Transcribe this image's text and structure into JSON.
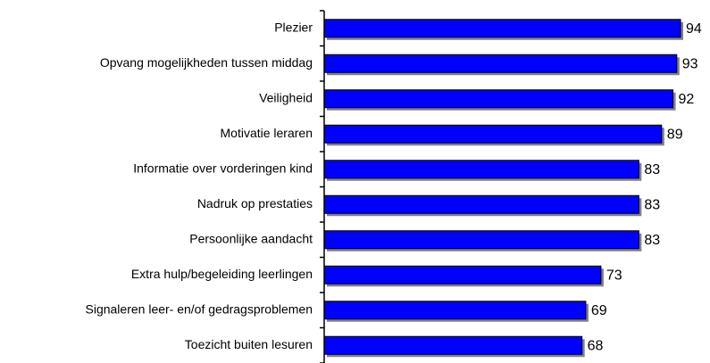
{
  "chart_data": {
    "type": "bar",
    "orientation": "horizontal",
    "categories": [
      "Plezier",
      "Opvang mogelijkheden tussen middag",
      "Veiligheid",
      "Motivatie leraren",
      "Informatie over vorderingen kind",
      "Nadruk op prestaties",
      "Persoonlijke aandacht",
      "Extra hulp/begeleiding leerlingen",
      "Signaleren leer- en/of gedragsproblemen",
      "Toezicht buiten lesuren"
    ],
    "values": [
      94,
      93,
      92,
      89,
      83,
      83,
      83,
      73,
      69,
      68
    ],
    "color": "#0000ff",
    "xlim": [
      0,
      100
    ]
  }
}
